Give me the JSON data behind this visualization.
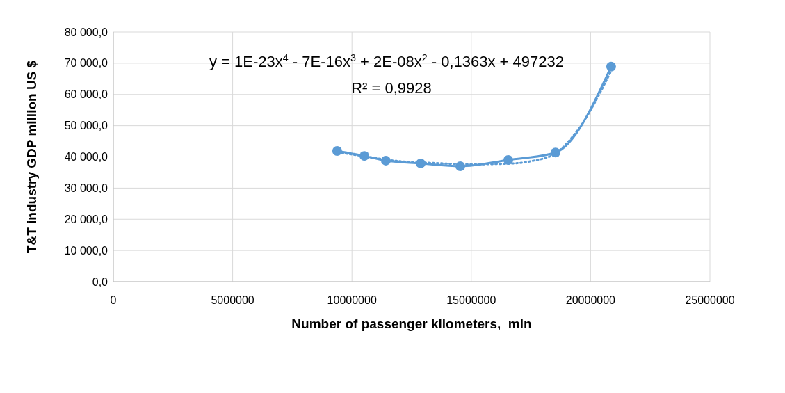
{
  "chart_data": {
    "type": "line",
    "xlabel": "Number of passenger kilometers,  mln",
    "ylabel": "T&T industry GDP million US $",
    "xlim": [
      0,
      25000000
    ],
    "xticks": [
      0,
      5000000,
      10000000,
      15000000,
      20000000,
      25000000
    ],
    "ylim": [
      0,
      80000
    ],
    "yticks": [
      {
        "value": 0,
        "label": "0,0"
      },
      {
        "value": 10000,
        "label": "10 000,0"
      },
      {
        "value": 20000,
        "label": "20 000,0"
      },
      {
        "value": 30000,
        "label": "30 000,0"
      },
      {
        "value": 40000,
        "label": "40 000,0"
      },
      {
        "value": 50000,
        "label": "50 000,0"
      },
      {
        "value": 60000,
        "label": "60 000,0"
      },
      {
        "value": 70000,
        "label": "70 000,0"
      },
      {
        "value": 80000,
        "label": "80 000,0"
      }
    ],
    "grid": true,
    "marker": "circle",
    "series": [
      {
        "type": "line",
        "color": "#5b9bd5",
        "line_style": "solid",
        "x": [
          9380000,
          10520000,
          11420000,
          12880000,
          14540000,
          16550000,
          18530000,
          20860000
        ],
        "values": [
          41900,
          40300,
          38800,
          37900,
          37000,
          39000,
          41400,
          68900
        ]
      },
      {
        "type": "line",
        "color": "#5b9bd5",
        "marker": "none",
        "line_style": "dotted",
        "x": [
          9400000,
          10500000,
          12000000,
          13500000,
          15000000,
          16500000,
          17500000,
          18500000,
          19500000,
          20860000
        ],
        "values": [
          41500,
          40200,
          38600,
          38000,
          37600,
          37800,
          38600,
          41000,
          49000,
          67500
        ]
      }
    ],
    "annotations": [
      "y = 1E-23x$^{4}$ - 7E-16x$^{3}$ + 2E-08x$^{2}$ - 0,1363x + 497232",
      "R² = 0,9928"
    ]
  }
}
